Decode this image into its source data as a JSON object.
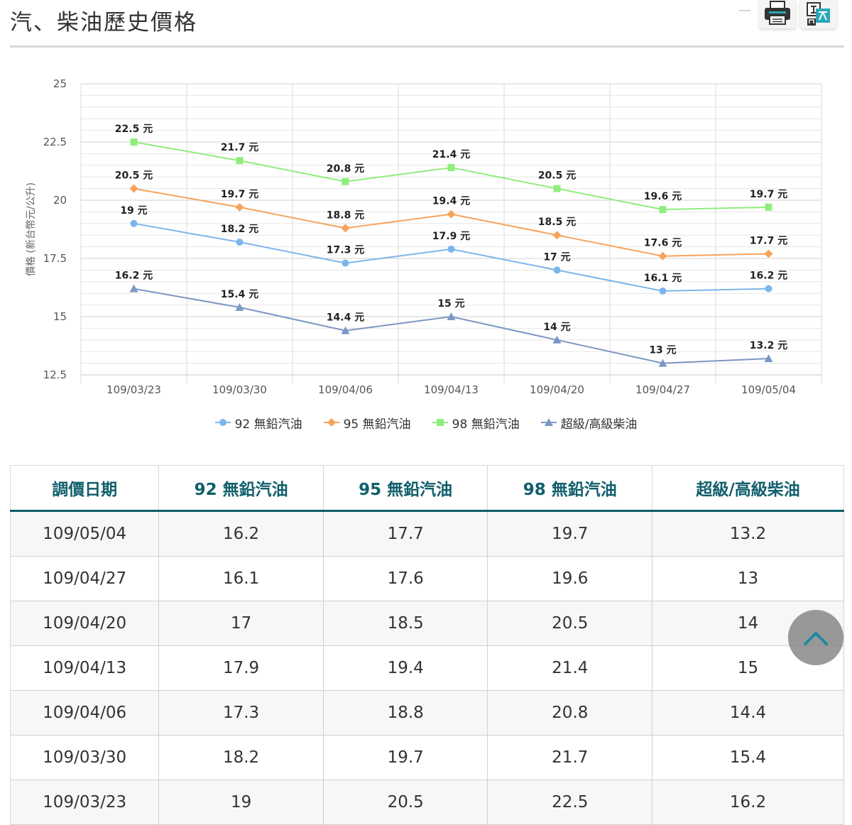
{
  "page": {
    "title": "汽、柴油歷史價格"
  },
  "toolbar": {
    "collapse_icon": "minus-icon",
    "print_icon": "printer-icon",
    "language_icon": "translate-icon"
  },
  "chart_data": {
    "type": "line",
    "ylabel": "價格 (新台幣元/公升)",
    "ylim": [
      12.5,
      25
    ],
    "yticks": [
      "25",
      "22.5",
      "20",
      "17.5",
      "15",
      "12.5"
    ],
    "categories": [
      "109/03/23",
      "109/03/30",
      "109/04/06",
      "109/04/13",
      "109/04/20",
      "109/04/27",
      "109/05/04"
    ],
    "label_suffix": " 元",
    "grid": true,
    "legend_position": "bottom",
    "series": [
      {
        "name": "92 無鉛汽油",
        "marker": "circle",
        "color": "#7cb5ec",
        "values": [
          19,
          18.2,
          17.3,
          17.9,
          17,
          16.1,
          16.2
        ]
      },
      {
        "name": "95 無鉛汽油",
        "marker": "diamond",
        "color": "#f7a35c",
        "values": [
          20.5,
          19.7,
          18.8,
          19.4,
          18.5,
          17.6,
          17.7
        ]
      },
      {
        "name": "98 無鉛汽油",
        "marker": "square",
        "color": "#90ed7d",
        "values": [
          22.5,
          21.7,
          20.8,
          21.4,
          20.5,
          19.6,
          19.7
        ]
      },
      {
        "name": "超級/高級柴油",
        "marker": "triangle",
        "color": "#7c97c4",
        "values": [
          16.2,
          15.4,
          14.4,
          15,
          14,
          13,
          13.2
        ]
      }
    ]
  },
  "table": {
    "headers": [
      "調價日期",
      "92 無鉛汽油",
      "95 無鉛汽油",
      "98 無鉛汽油",
      "超級/高級柴油"
    ],
    "rows": [
      [
        "109/05/04",
        "16.2",
        "17.7",
        "19.7",
        "13.2"
      ],
      [
        "109/04/27",
        "16.1",
        "17.6",
        "19.6",
        "13"
      ],
      [
        "109/04/20",
        "17",
        "18.5",
        "20.5",
        "14"
      ],
      [
        "109/04/13",
        "17.9",
        "19.4",
        "21.4",
        "15"
      ],
      [
        "109/04/06",
        "17.3",
        "18.8",
        "20.8",
        "14.4"
      ],
      [
        "109/03/30",
        "18.2",
        "19.7",
        "21.7",
        "15.4"
      ],
      [
        "109/03/23",
        "19",
        "20.5",
        "22.5",
        "16.2"
      ]
    ]
  },
  "back_to_top": {
    "icon": "chevron-up-icon"
  }
}
